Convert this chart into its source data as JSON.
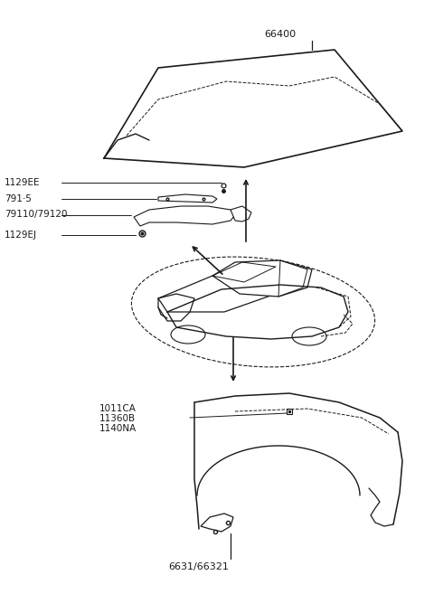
{
  "background_color": "#ffffff",
  "labels": {
    "hood_part": "66400",
    "label_1129EE": "1129EE",
    "label_7915": "791·5",
    "label_79110": "79110/79120",
    "label_1129EJ": "1129EJ",
    "label_parts_1": "1011CA",
    "label_parts_2": "11360B",
    "label_parts_3": "1140NA",
    "fender_part": "6631/66321"
  },
  "colors": {
    "line": "#1a1a1a",
    "text": "#1a1a1a",
    "bg": "#ffffff"
  }
}
